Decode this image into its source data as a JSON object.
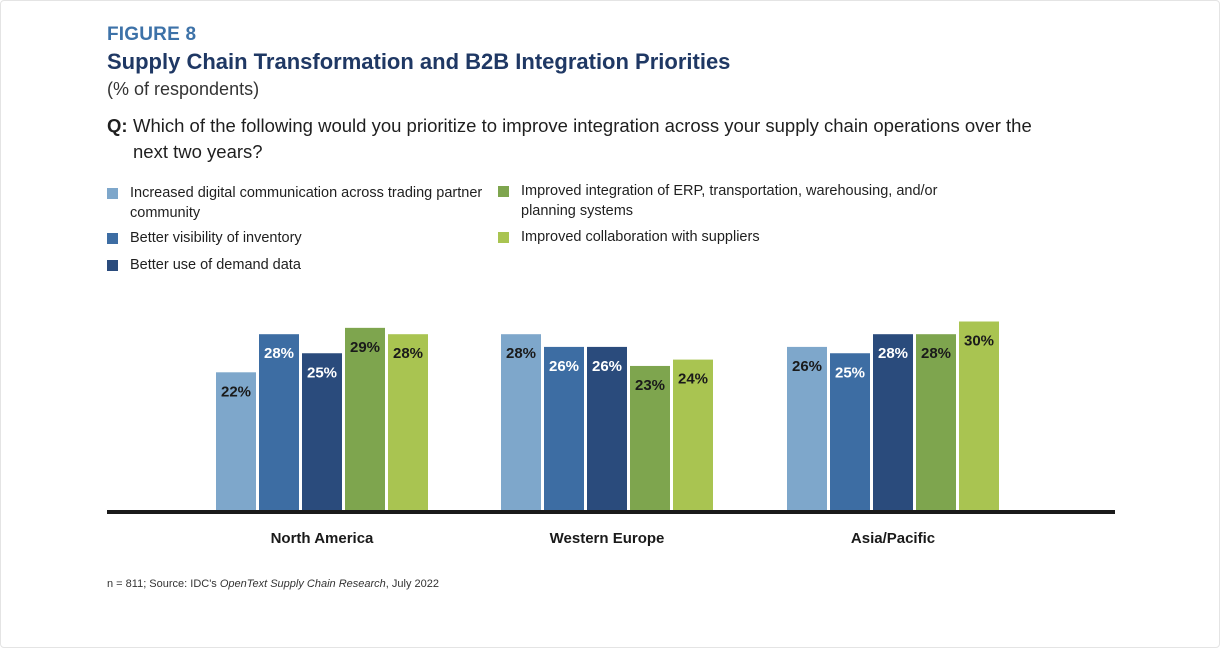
{
  "figure_label": "FIGURE 8",
  "footnote": {
    "prefix": "n = 811; Source: IDC's ",
    "source_italic": "OpenText Supply Chain Research",
    "suffix": ", July 2022"
  },
  "colors": {
    "series": [
      "#7ea7cb",
      "#3d6da3",
      "#2a4b7c",
      "#7ea54e",
      "#a9c451"
    ],
    "axis": "#1a1a1a",
    "label_light": "#ffffff",
    "label_dark": "#1a1a1a"
  },
  "chart_data": {
    "type": "bar",
    "title": "Supply Chain Transformation and B2B Integration Priorities",
    "subtitle": "(% of respondents)",
    "question_prefix": "Q:",
    "question": "Which of the following would you prioritize to improve integration across your supply chain operations over the next two years?",
    "categories": [
      "North America",
      "Western Europe",
      "Asia/Pacific"
    ],
    "series": [
      {
        "name": "Increased digital communication across trading partner community",
        "values": [
          22,
          28,
          26
        ]
      },
      {
        "name": "Better visibility of inventory",
        "values": [
          28,
          26,
          25
        ]
      },
      {
        "name": "Better use of demand data",
        "values": [
          25,
          26,
          28
        ]
      },
      {
        "name": "Improved integration of ERP, transportation, warehousing, and/or planning systems",
        "values": [
          29,
          23,
          28
        ]
      },
      {
        "name": "Improved collaboration with suppliers",
        "values": [
          28,
          24,
          30
        ]
      }
    ],
    "value_suffix": "%",
    "xlabel": "",
    "ylabel": "",
    "ylim": [
      0,
      30
    ],
    "grid": false,
    "legend_position": "top"
  }
}
